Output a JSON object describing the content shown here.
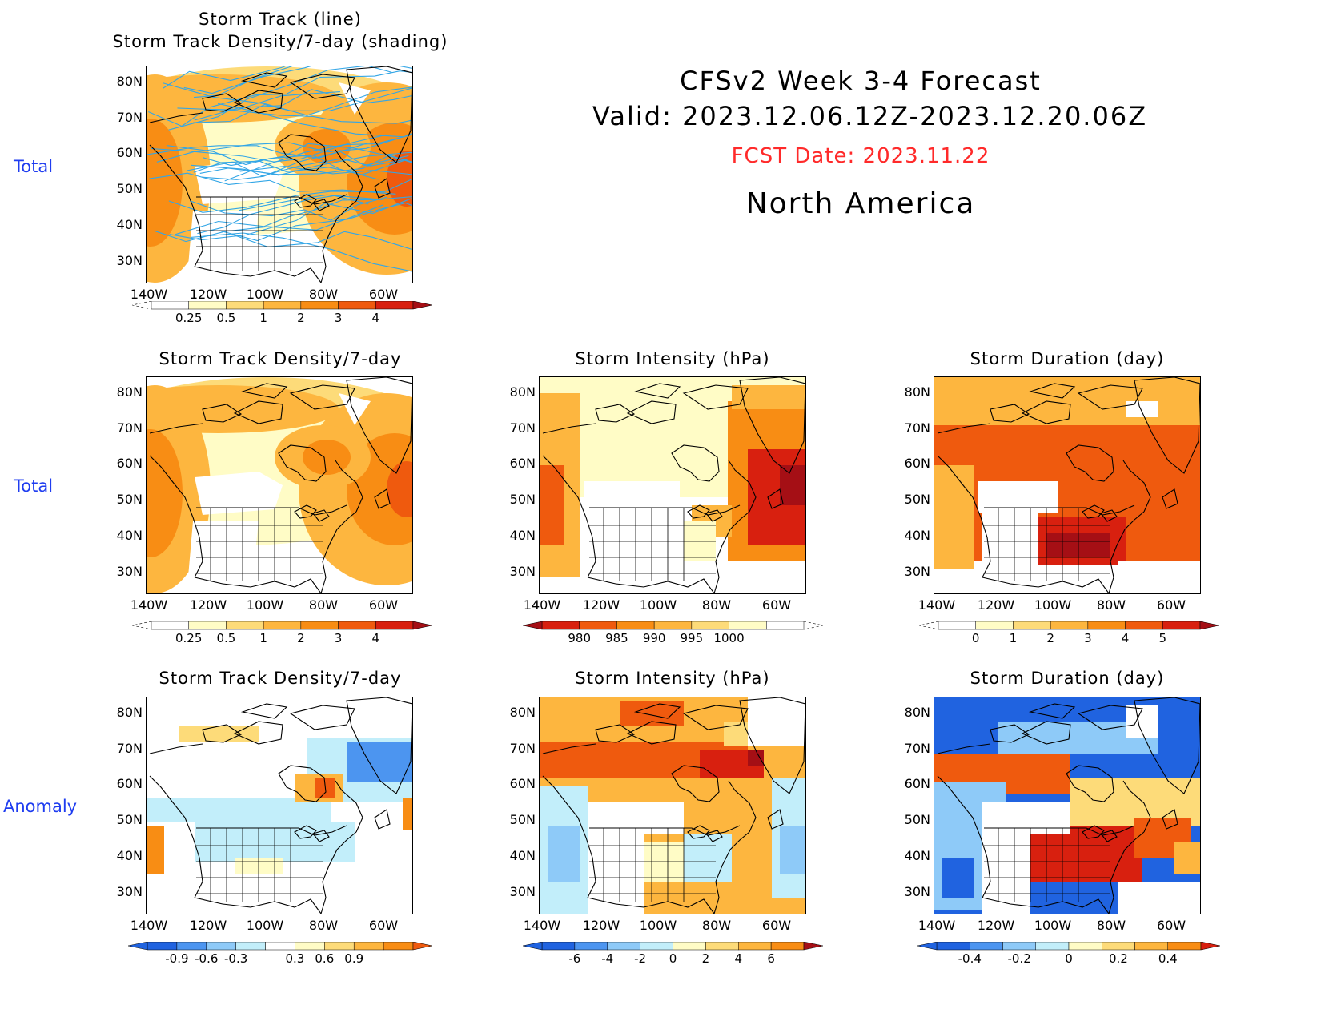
{
  "header": {
    "line1": "CFSv2 Week 3-4 Forecast",
    "line2": "Valid: 2023.12.06.12Z-2023.12.20.06Z",
    "fcst_date": "FCST Date: 2023.11.22",
    "region": "North America"
  },
  "row_labels": {
    "row1": "Total",
    "row2": "Total",
    "row3": "Anomaly"
  },
  "axes": {
    "lat_labels": [
      "80N",
      "70N",
      "60N",
      "50N",
      "40N",
      "30N"
    ],
    "lon_labels": [
      "140W",
      "120W",
      "100W",
      "80W",
      "60W"
    ]
  },
  "panels": {
    "p1": {
      "title1": "Storm Track (line)",
      "title2": "Storm Track Density/7-day (shading)",
      "colorbar_labels": [
        "0.25",
        "0.5",
        "1",
        "2",
        "3",
        "4"
      ]
    },
    "p2": {
      "title": "Storm Track Density/7-day",
      "colorbar_labels": [
        "0.25",
        "0.5",
        "1",
        "2",
        "3",
        "4"
      ]
    },
    "p3": {
      "title": "Storm Intensity (hPa)",
      "colorbar_labels": [
        "980",
        "985",
        "990",
        "995",
        "1000"
      ]
    },
    "p4": {
      "title": "Storm Duration (day)",
      "colorbar_labels": [
        "0",
        "1",
        "2",
        "3",
        "4",
        "5"
      ]
    },
    "p5": {
      "title": "Storm Track Density/7-day",
      "colorbar_labels": [
        "-0.9",
        "-0.6",
        "-0.3",
        "0.3",
        "0.6",
        "0.9"
      ]
    },
    "p6": {
      "title": "Storm Intensity (hPa)",
      "colorbar_labels": [
        "-6",
        "-4",
        "-2",
        "0",
        "2",
        "4",
        "6"
      ]
    },
    "p7": {
      "title": "Storm Duration (day)",
      "colorbar_labels": [
        "-0.4",
        "-0.2",
        "0",
        "0.2",
        "0.4"
      ]
    }
  },
  "colors": {
    "row_label": "#1f3df0",
    "fcst_date": "#ff2a2a",
    "track_line": "#33a6e6",
    "warm_scale": [
      "#fffcc6",
      "#fddb79",
      "#fdb63f",
      "#f88d14",
      "#ef5a0e",
      "#d8200f",
      "#a50f15"
    ],
    "cool_scale": [
      "#2063e0",
      "#4c95f0",
      "#8ecaf8",
      "#c2eefa"
    ]
  }
}
